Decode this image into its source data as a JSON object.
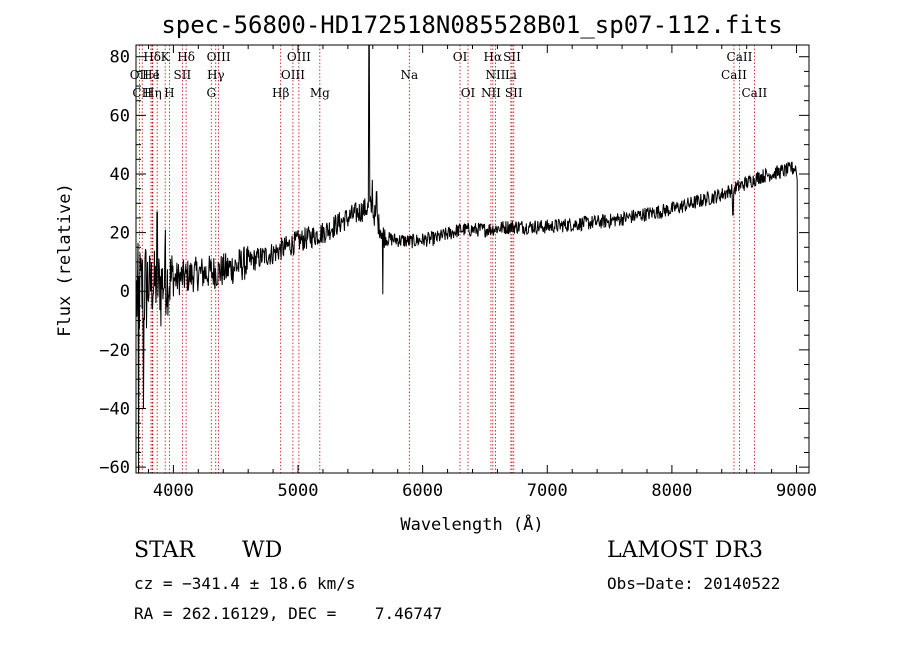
{
  "chart_data": {
    "type": "line",
    "title": "spec-56800-HD172518N085528B01_sp07-112.fits",
    "xlabel": "Wavelength (Å)",
    "ylabel": "Flux (relative)",
    "xlim": [
      3700,
      9100
    ],
    "ylim": [
      -62,
      84
    ],
    "xticks": [
      4000,
      5000,
      6000,
      7000,
      8000,
      9000
    ],
    "yticks": [
      -60,
      -40,
      -20,
      0,
      20,
      40,
      60,
      80
    ],
    "spectrum_trend": [
      {
        "x": 3700,
        "y": -2
      },
      {
        "x": 3800,
        "y": 2
      },
      {
        "x": 3900,
        "y": 3
      },
      {
        "x": 4000,
        "y": 4
      },
      {
        "x": 4200,
        "y": 6
      },
      {
        "x": 4400,
        "y": 7
      },
      {
        "x": 4600,
        "y": 10
      },
      {
        "x": 4800,
        "y": 13
      },
      {
        "x": 5000,
        "y": 17
      },
      {
        "x": 5200,
        "y": 20
      },
      {
        "x": 5400,
        "y": 25
      },
      {
        "x": 5580,
        "y": 29
      },
      {
        "x": 5700,
        "y": 18
      },
      {
        "x": 5900,
        "y": 17
      },
      {
        "x": 6100,
        "y": 18
      },
      {
        "x": 6300,
        "y": 21
      },
      {
        "x": 6500,
        "y": 21
      },
      {
        "x": 6700,
        "y": 22
      },
      {
        "x": 7000,
        "y": 22
      },
      {
        "x": 7500,
        "y": 24
      },
      {
        "x": 8000,
        "y": 28
      },
      {
        "x": 8400,
        "y": 33
      },
      {
        "x": 8700,
        "y": 39
      },
      {
        "x": 8990,
        "y": 42
      }
    ],
    "features": [
      {
        "x": 3720,
        "y": -62
      },
      {
        "x": 3760,
        "y": -40
      },
      {
        "x": 3870,
        "y": 27
      },
      {
        "x": 3900,
        "y": -12
      },
      {
        "x": 3935,
        "y": 21
      },
      {
        "x": 5570,
        "y": 84
      },
      {
        "x": 5595,
        "y": 38
      },
      {
        "x": 5630,
        "y": 34
      },
      {
        "x": 5680,
        "y": -1
      },
      {
        "x": 8490,
        "y": 26
      },
      {
        "x": 8960,
        "y": 44
      },
      {
        "x": 9005,
        "y": 0
      }
    ],
    "lines": [
      {
        "label": "Hδ",
        "wave": 3830,
        "row": 1
      },
      {
        "label": "K",
        "wave": 3934,
        "row": 1
      },
      {
        "label": "Hδ",
        "wave": 4102,
        "row": 1
      },
      {
        "label": "OIII",
        "wave": 4363,
        "row": 1
      },
      {
        "label": "OIII",
        "wave": 5007,
        "row": 1
      },
      {
        "label": "OI",
        "wave": 6300,
        "row": 1
      },
      {
        "label": "Hα",
        "wave": 6563,
        "row": 1
      },
      {
        "label": "SII",
        "wave": 6717,
        "row": 1
      },
      {
        "label": "CaII",
        "wave": 8542,
        "row": 1
      },
      {
        "label": "OII",
        "wave": 3727,
        "row": 2
      },
      {
        "label": "He",
        "wave": 3820,
        "row": 2
      },
      {
        "label": "I",
        "wave": 3870,
        "row": 2
      },
      {
        "label": "SII",
        "wave": 4072,
        "row": 2
      },
      {
        "label": "Hγ",
        "wave": 4340,
        "row": 2
      },
      {
        "label": "OIII",
        "wave": 4959,
        "row": 2
      },
      {
        "label": "Na",
        "wave": 5893,
        "row": 2
      },
      {
        "label": "NII",
        "wave": 6584,
        "row": 2
      },
      {
        "label": "Li",
        "wave": 6708,
        "row": 2
      },
      {
        "label": "CaII",
        "wave": 8498,
        "row": 2
      },
      {
        "label": "CH",
        "wave": 3750,
        "row": 3
      },
      {
        "label": "Hη",
        "wave": 3835,
        "row": 3
      },
      {
        "label": "H",
        "wave": 3968,
        "row": 3
      },
      {
        "label": "G",
        "wave": 4304,
        "row": 3
      },
      {
        "label": "Hβ",
        "wave": 4861,
        "row": 3
      },
      {
        "label": "Mg",
        "wave": 5175,
        "row": 3
      },
      {
        "label": "OI",
        "wave": 6364,
        "row": 3
      },
      {
        "label": "NII",
        "wave": 6548,
        "row": 3
      },
      {
        "label": "SII",
        "wave": 6731,
        "row": 3
      },
      {
        "label": "CaII",
        "wave": 8662,
        "row": 3
      }
    ],
    "line_color": "#cc0000",
    "spectrum_color": "#000000"
  },
  "info": {
    "object_class": "STAR",
    "subclass": "WD",
    "survey": "LAMOST DR3",
    "cz": "cz = −341.4 ± 18.6 km/s",
    "obs_date": "Obs−Date: 20140522",
    "coords": "RA = 262.16129, DEC =    7.46747"
  }
}
